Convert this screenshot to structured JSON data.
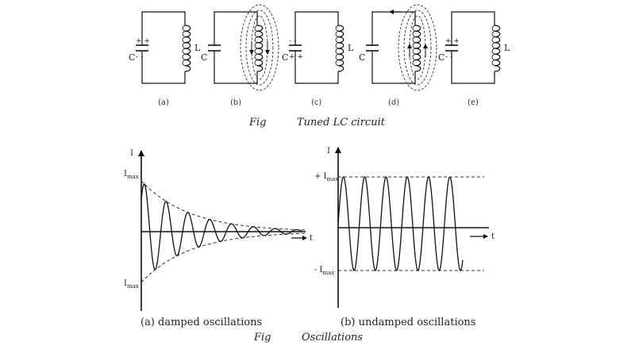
{
  "lc_figure": {
    "fig_word": "Fig",
    "caption": "Tuned LC circuit",
    "panels": [
      {
        "sublabel": "(a)",
        "c_label": "C",
        "l_label": "L",
        "top_plate": "+ +",
        "bottom_plate": "- -",
        "field": "none"
      },
      {
        "sublabel": "(b)",
        "c_label": "C",
        "l_label": "",
        "top_plate": "",
        "bottom_plate": "",
        "field": "down"
      },
      {
        "sublabel": "(c)",
        "c_label": "C",
        "l_label": "L",
        "top_plate": "- -",
        "bottom_plate": "+ +",
        "field": "none"
      },
      {
        "sublabel": "(d)",
        "c_label": "C",
        "l_label": "",
        "top_plate": "",
        "bottom_plate": "",
        "field": "up"
      },
      {
        "sublabel": "(e)",
        "c_label": "C",
        "l_label": "L",
        "top_plate": "+ +",
        "bottom_plate": "- -",
        "field": "none"
      }
    ]
  },
  "oscillation_figure": {
    "fig_word": "Fig",
    "caption": "Oscillations",
    "damped": {
      "label": "(a) damped oscillations",
      "y_axis": "I",
      "x_axis": "t",
      "top_marker": "I",
      "top_marker_sub": "max",
      "bottom_marker": "I",
      "bottom_marker_sub": "max"
    },
    "undamped": {
      "label": "(b) undamped oscillations",
      "y_axis": "I",
      "x_axis": "t",
      "top_marker": "+ I",
      "top_marker_sub": "max",
      "bottom_marker": "- I",
      "bottom_marker_sub": "max"
    }
  }
}
